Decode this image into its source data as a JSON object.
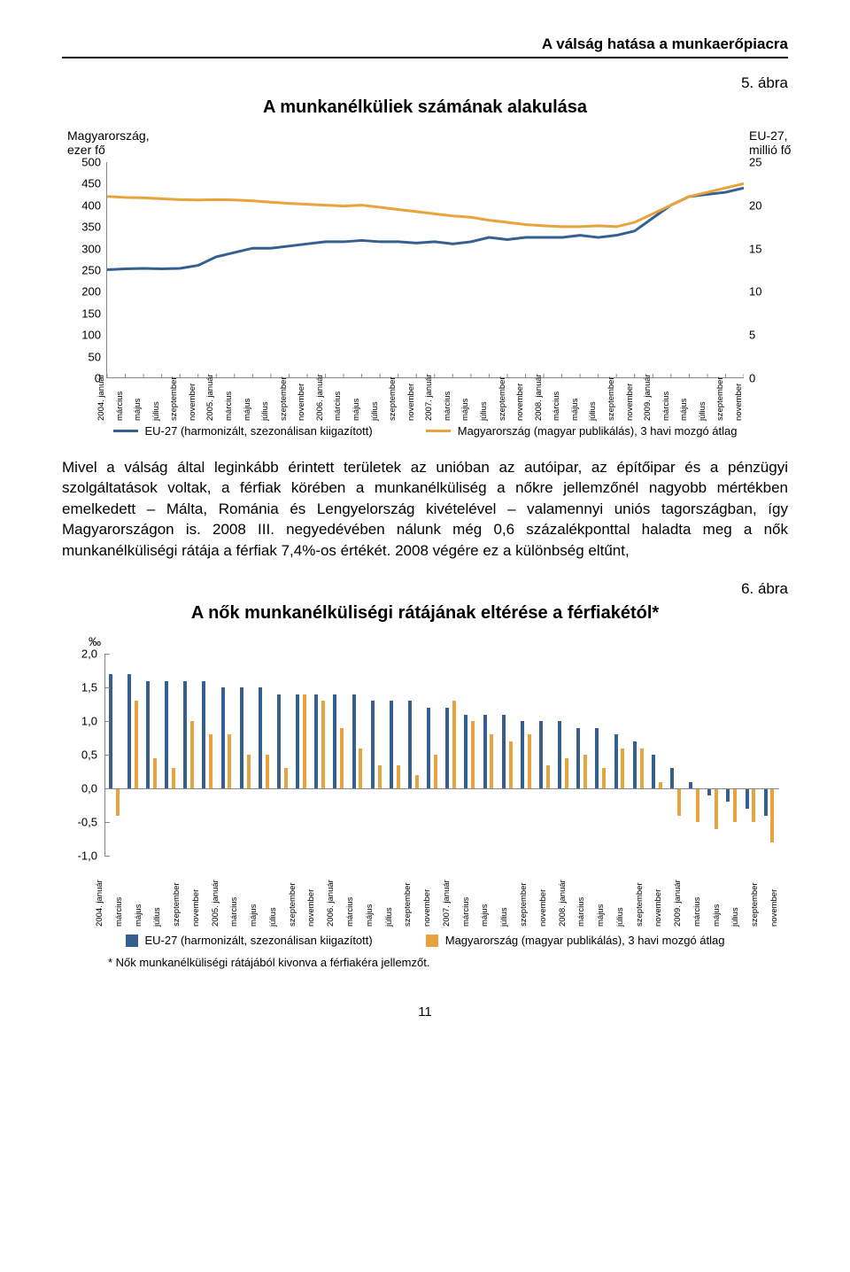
{
  "page": {
    "header": "A válság hatása a munkaerőpiacra",
    "page_number": "11"
  },
  "colors": {
    "hungary_line": "#365f91",
    "eu_line": "#e8a33d",
    "bar_eu": "#365f91",
    "bar_hu": "#e8a33d",
    "grid": "#bbbbbb",
    "text": "#000000"
  },
  "fonts": {
    "body_pt": 13,
    "title_pt": 15,
    "axis_pt": 10
  },
  "fig5": {
    "number": "5. ábra",
    "title": "A munkanélküliek számának alakulása",
    "type": "line",
    "left_axis": {
      "label_top": "Magyarország,",
      "label_sub": "ezer fő",
      "min": 0,
      "max": 500,
      "step": 50
    },
    "right_axis": {
      "label_top": "EU-27,",
      "label_sub": "millió fő",
      "min": 0,
      "max": 25,
      "step": 5
    },
    "x_months": [
      "2004. január",
      "március",
      "május",
      "július",
      "szeptember",
      "november",
      "2005. január",
      "március",
      "május",
      "július",
      "szeptember",
      "november",
      "2006. január",
      "március",
      "május",
      "július",
      "szeptember",
      "november",
      "2007. január",
      "március",
      "május",
      "július",
      "szeptember",
      "november",
      "2008. január",
      "március",
      "május",
      "július",
      "szeptember",
      "november",
      "2009. január",
      "március",
      "május",
      "július",
      "szeptember",
      "november"
    ],
    "series": {
      "hungary_ezer_fo": [
        250,
        252,
        253,
        252,
        253,
        260,
        280,
        290,
        300,
        300,
        305,
        310,
        315,
        315,
        318,
        315,
        315,
        312,
        315,
        310,
        315,
        325,
        320,
        325,
        325,
        325,
        330,
        325,
        330,
        340,
        370,
        400,
        420,
        425,
        430,
        440
      ],
      "eu27_millio_fo": [
        420,
        418,
        417,
        415,
        413,
        412,
        413,
        412,
        410,
        407,
        404,
        402,
        400,
        398,
        400,
        395,
        390,
        385,
        380,
        375,
        372,
        365,
        360,
        355,
        352,
        350,
        350,
        352,
        350,
        360,
        380,
        400,
        420,
        430,
        440,
        450
      ]
    },
    "legend": {
      "eu": "EU-27 (harmonizált, szezonálisan kiigazított)",
      "hu": "Magyarország (magyar publikálás), 3 havi mozgó átlag"
    }
  },
  "paragraph1": "Mivel a válság által leginkább érintett területek az unióban az autóipar, az építőipar és a pénzügyi szolgáltatások voltak, a férfiak körében a munkanélküliség a nőkre jellemzőnél nagyobb mértékben emelkedett – Málta, Románia és Lengyelország kivételével – valamennyi uniós tagországban, így Magyarországon is. 2008 III. negyedévében nálunk még 0,6 százalékponttal haladta meg a nők munkanélküliségi rátája a férfiak 7,4%-os értékét. 2008 végére ez a különbség eltűnt,",
  "fig6": {
    "number": "6. ábra",
    "title": "A nők munkanélküliségi rátájának eltérése a férfiakétól*",
    "type": "bar",
    "y_unit": "‰",
    "ylim": [
      -1.0,
      2.0
    ],
    "ytick_step": 0.5,
    "x_months": [
      "2004. január",
      "március",
      "május",
      "július",
      "szeptember",
      "november",
      "2005. január",
      "március",
      "május",
      "július",
      "szeptember",
      "november",
      "2006. január",
      "március",
      "május",
      "július",
      "szeptember",
      "november",
      "2007. január",
      "március",
      "május",
      "július",
      "szeptember",
      "november",
      "2008. január",
      "március",
      "május",
      "július",
      "szeptember",
      "november",
      "2009. január",
      "március",
      "május",
      "július",
      "szeptember",
      "november"
    ],
    "eu_values": [
      1.7,
      1.7,
      1.6,
      1.6,
      1.6,
      1.6,
      1.5,
      1.5,
      1.5,
      1.4,
      1.4,
      1.4,
      1.4,
      1.4,
      1.3,
      1.3,
      1.3,
      1.2,
      1.2,
      1.1,
      1.1,
      1.1,
      1.0,
      1.0,
      1.0,
      0.9,
      0.9,
      0.8,
      0.7,
      0.5,
      0.3,
      0.1,
      -0.1,
      -0.2,
      -0.3,
      -0.4
    ],
    "hu_values": [
      -0.4,
      1.3,
      0.45,
      0.3,
      1.0,
      0.8,
      0.8,
      0.5,
      0.5,
      0.3,
      1.4,
      1.3,
      0.9,
      0.6,
      0.35,
      0.35,
      0.2,
      0.5,
      1.3,
      1.0,
      0.8,
      0.7,
      0.8,
      0.35,
      0.45,
      0.5,
      0.3,
      0.6,
      0.6,
      0.1,
      -0.4,
      -0.5,
      -0.6,
      -0.5,
      -0.5,
      -0.8
    ],
    "legend": {
      "eu": "EU-27 (harmonizált, szezonálisan kiigazított)",
      "hu": "Magyarország (magyar publikálás), 3 havi mozgó átlag"
    },
    "footnote": "* Nők munkanélküliségi rátájából kivonva a férfiakéra jellemzőt."
  }
}
